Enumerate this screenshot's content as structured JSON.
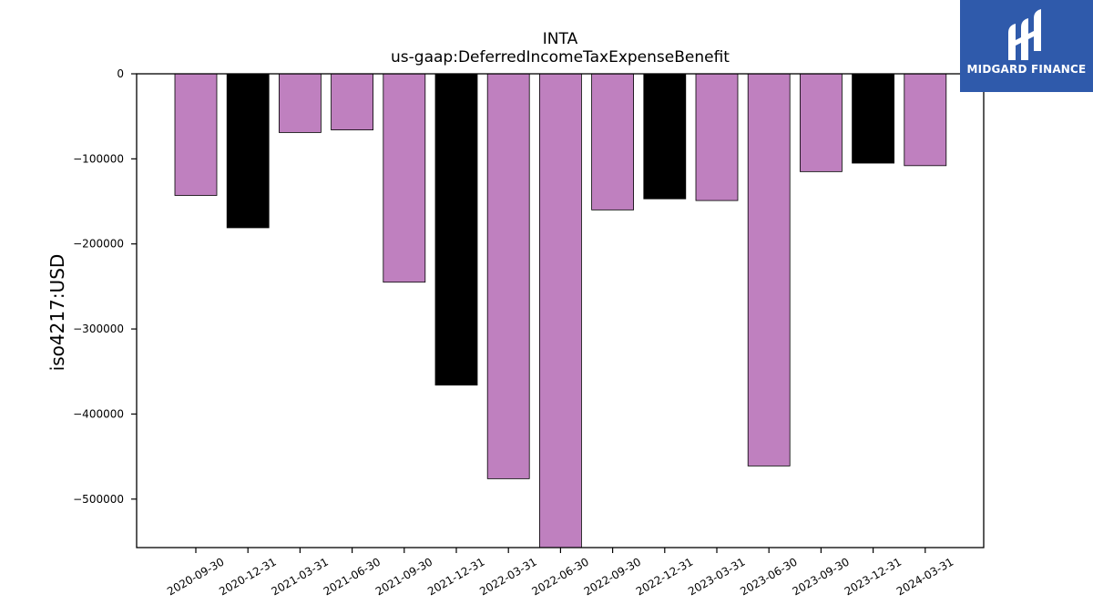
{
  "logo": {
    "text": "MIDGARD FINANCE",
    "background": "#2f5aab"
  },
  "chart_data": {
    "type": "bar",
    "title": [
      "INTA",
      "us-gaap:DeferredIncomeTaxExpenseBenefit"
    ],
    "xlabel": "",
    "ylabel": "iso4217:USD",
    "categories": [
      "2020-09-30",
      "2020-12-31",
      "2021-03-31",
      "2021-06-30",
      "2021-09-30",
      "2021-12-31",
      "2022-03-31",
      "2022-06-30",
      "2022-09-30",
      "2022-12-31",
      "2023-03-31",
      "2023-06-30",
      "2023-09-30",
      "2023-12-31",
      "2024-03-31"
    ],
    "values": [
      -143000,
      -181000,
      -69000,
      -66000,
      -245000,
      -366000,
      -476000,
      -560000,
      -160000,
      -147000,
      -149000,
      -461000,
      -115000,
      -105000,
      -108000
    ],
    "bar_colors": [
      "#bf80bf",
      "#000000",
      "#bf80bf",
      "#bf80bf",
      "#bf80bf",
      "#000000",
      "#bf80bf",
      "#bf80bf",
      "#bf80bf",
      "#000000",
      "#bf80bf",
      "#bf80bf",
      "#bf80bf",
      "#000000",
      "#bf80bf"
    ],
    "ylim": [
      -557000,
      0
    ],
    "yticks": [
      0,
      -100000,
      -200000,
      -300000,
      -400000,
      -500000
    ],
    "ytick_labels": [
      "0",
      "−100000",
      "−200000",
      "−300000",
      "−400000",
      "−500000"
    ],
    "grid": false,
    "legend": "none"
  }
}
